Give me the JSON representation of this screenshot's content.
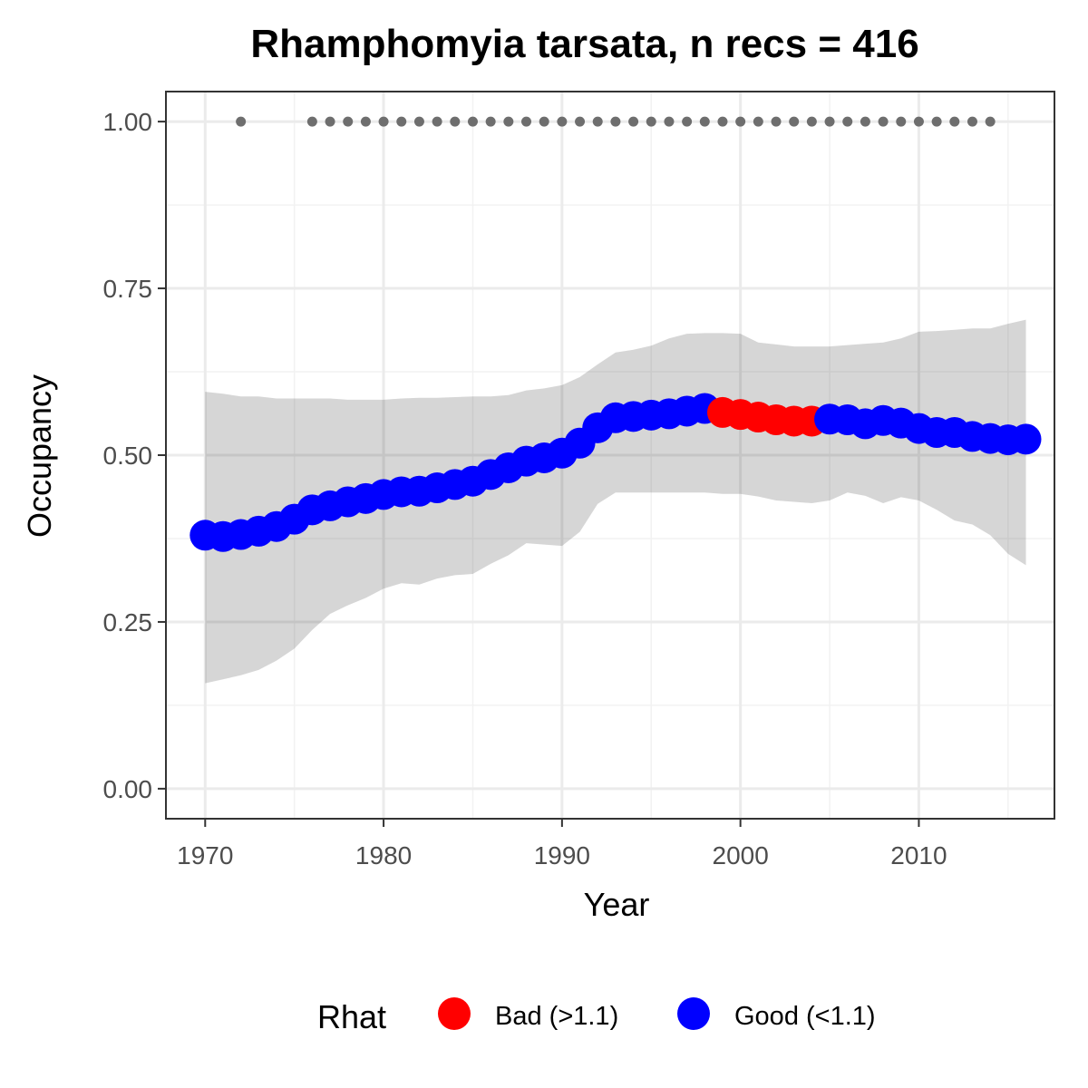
{
  "chart_data": {
    "type": "line",
    "title": "Rhamphomyia tarsata, n recs = 416",
    "xlabel": "Year",
    "ylabel": "Occupancy",
    "xlim": [
      1967.8,
      2017.6
    ],
    "ylim": [
      -0.045,
      1.045
    ],
    "x_ticks": [
      1970,
      1980,
      1990,
      2000,
      2010
    ],
    "x_tick_labels": [
      "1970",
      "1980",
      "1990",
      "2000",
      "2010"
    ],
    "y_ticks": [
      0,
      0.25,
      0.5,
      0.75,
      1.0
    ],
    "y_tick_labels": [
      "0.00",
      "0.25",
      "0.50",
      "0.75",
      "1.00"
    ],
    "grid": true,
    "legend": {
      "title": "Rhat",
      "position": "bottom",
      "entries": [
        {
          "label": "Bad (>1.1)",
          "color": "#ff0000"
        },
        {
          "label": "Good (<1.1)",
          "color": "#0000ff"
        }
      ]
    },
    "colors": {
      "bad": "#ff0000",
      "good": "#0000ff",
      "ribbon": "#d6d6d6",
      "record_points": "#6e6e6e"
    },
    "x": [
      1970,
      1971,
      1972,
      1973,
      1974,
      1975,
      1976,
      1977,
      1978,
      1979,
      1980,
      1981,
      1982,
      1983,
      1984,
      1985,
      1986,
      1987,
      1988,
      1989,
      1990,
      1991,
      1992,
      1993,
      1994,
      1995,
      1996,
      1997,
      1998,
      1999,
      2000,
      2001,
      2002,
      2003,
      2004,
      2005,
      2006,
      2007,
      2008,
      2009,
      2010,
      2011,
      2012,
      2013,
      2014,
      2015,
      2016
    ],
    "occupancy": [
      0.38,
      0.378,
      0.381,
      0.386,
      0.393,
      0.404,
      0.418,
      0.424,
      0.43,
      0.435,
      0.441,
      0.445,
      0.446,
      0.451,
      0.456,
      0.461,
      0.471,
      0.481,
      0.491,
      0.496,
      0.503,
      0.518,
      0.541,
      0.556,
      0.558,
      0.56,
      0.562,
      0.566,
      0.57,
      0.564,
      0.561,
      0.557,
      0.553,
      0.551,
      0.551,
      0.554,
      0.553,
      0.547,
      0.552,
      0.548,
      0.54,
      0.534,
      0.534,
      0.528,
      0.525,
      0.523,
      0.524
    ],
    "rhat": [
      "Good",
      "Good",
      "Good",
      "Good",
      "Good",
      "Good",
      "Good",
      "Good",
      "Good",
      "Good",
      "Good",
      "Good",
      "Good",
      "Good",
      "Good",
      "Good",
      "Good",
      "Good",
      "Good",
      "Good",
      "Good",
      "Good",
      "Good",
      "Good",
      "Good",
      "Good",
      "Good",
      "Good",
      "Good",
      "Bad",
      "Bad",
      "Bad",
      "Bad",
      "Bad",
      "Bad",
      "Good",
      "Good",
      "Good",
      "Good",
      "Good",
      "Good",
      "Good",
      "Good",
      "Good",
      "Good",
      "Good",
      "Good"
    ],
    "lower_ci": [
      0.158,
      0.164,
      0.17,
      0.178,
      0.192,
      0.21,
      0.238,
      0.262,
      0.275,
      0.286,
      0.3,
      0.308,
      0.306,
      0.315,
      0.32,
      0.322,
      0.337,
      0.35,
      0.368,
      0.366,
      0.364,
      0.385,
      0.427,
      0.444,
      0.444,
      0.444,
      0.444,
      0.444,
      0.444,
      0.442,
      0.442,
      0.438,
      0.432,
      0.43,
      0.428,
      0.432,
      0.444,
      0.439,
      0.428,
      0.437,
      0.432,
      0.418,
      0.402,
      0.396,
      0.38,
      0.352,
      0.335
    ],
    "upper_ci": [
      0.595,
      0.592,
      0.588,
      0.588,
      0.585,
      0.585,
      0.585,
      0.585,
      0.583,
      0.583,
      0.583,
      0.585,
      0.586,
      0.586,
      0.587,
      0.588,
      0.588,
      0.59,
      0.597,
      0.6,
      0.605,
      0.617,
      0.636,
      0.654,
      0.658,
      0.664,
      0.675,
      0.682,
      0.683,
      0.683,
      0.682,
      0.669,
      0.666,
      0.663,
      0.663,
      0.663,
      0.665,
      0.667,
      0.669,
      0.675,
      0.685,
      0.686,
      0.688,
      0.69,
      0.69,
      0.697,
      0.703
    ],
    "record_years": [
      1972,
      1976,
      1977,
      1978,
      1979,
      1980,
      1981,
      1982,
      1983,
      1984,
      1985,
      1986,
      1987,
      1988,
      1989,
      1990,
      1991,
      1992,
      1993,
      1994,
      1995,
      1996,
      1997,
      1998,
      1999,
      2000,
      2001,
      2002,
      2003,
      2004,
      2005,
      2006,
      2007,
      2008,
      2009,
      2010,
      2011,
      2012,
      2013,
      2014
    ],
    "record_value": 1.0
  }
}
